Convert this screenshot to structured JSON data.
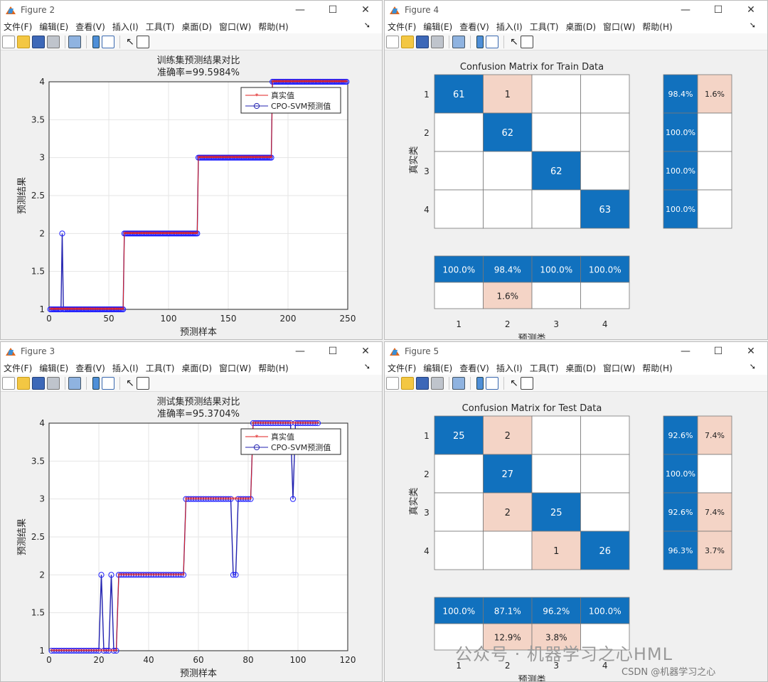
{
  "menu": [
    "文件(F)",
    "编辑(E)",
    "查看(V)",
    "插入(I)",
    "工具(T)",
    "桌面(D)",
    "窗口(W)",
    "帮助(H)"
  ],
  "window_controls": {
    "min": "—",
    "max": "☐",
    "close": "✕"
  },
  "fig2": {
    "window_title": "Figure 2",
    "title1": "训练集预测结果对比",
    "title2": "准确率=99.5984%",
    "xlabel": "预测样本",
    "ylabel": "预测结果",
    "xticks": [
      "0",
      "50",
      "100",
      "150",
      "200",
      "250"
    ],
    "yticks": [
      "1",
      "1.5",
      "2",
      "2.5",
      "3",
      "3.5",
      "4"
    ],
    "legend": [
      "真实值",
      "CPO-SVM预测值"
    ]
  },
  "fig3": {
    "window_title": "Figure 3",
    "title1": "测试集预测结果对比",
    "title2": "准确率=95.3704%",
    "xlabel": "预测样本",
    "ylabel": "预测结果",
    "xticks": [
      "0",
      "20",
      "40",
      "60",
      "80",
      "100",
      "120"
    ],
    "yticks": [
      "1",
      "1.5",
      "2",
      "2.5",
      "3",
      "3.5",
      "4"
    ],
    "legend": [
      "真实值",
      "CPO-SVM预测值"
    ]
  },
  "fig4": {
    "window_title": "Figure 4",
    "title": "Confusion Matrix for Train Data",
    "xlabel": "预测类",
    "ylabel": "真实类",
    "classes": [
      "1",
      "2",
      "3",
      "4"
    ]
  },
  "fig5": {
    "window_title": "Figure 5",
    "title": "Confusion Matrix for Test Data",
    "xlabel": "预测类",
    "ylabel": "真实类",
    "classes": [
      "1",
      "2",
      "3",
      "4"
    ]
  },
  "watermark": {
    "main": "公众号 · 机器学习之心HML",
    "sub": "CSDN @机器学习之心"
  },
  "colors": {
    "diag": "#1171be",
    "offdiag": "#f4d4c6",
    "empty": "#ffffff",
    "true_line": "#e02020",
    "pred_line": "#2222b0",
    "pred_marker": "#1f1fff"
  },
  "chart_data": [
    {
      "type": "line",
      "id": "fig2",
      "title": "训练集预测结果对比 准确率=99.5984%",
      "xlabel": "预测样本",
      "ylabel": "预测结果",
      "xlim": [
        0,
        250
      ],
      "ylim": [
        1,
        4
      ],
      "series": [
        {
          "name": "真实值",
          "segments": [
            [
              1,
              62,
              1
            ],
            [
              63,
              124,
              2
            ],
            [
              125,
              186,
              3
            ],
            [
              187,
              249,
              4
            ]
          ]
        },
        {
          "name": "CPO-SVM预测值",
          "segments": [
            [
              1,
              62,
              1
            ],
            [
              63,
              124,
              2
            ],
            [
              125,
              186,
              3
            ],
            [
              187,
              249,
              4
            ]
          ],
          "outliers": [
            [
              11,
              2
            ]
          ]
        }
      ]
    },
    {
      "type": "line",
      "id": "fig3",
      "title": "测试集预测结果对比 准确率=95.3704%",
      "xlabel": "预测样本",
      "ylabel": "预测结果",
      "xlim": [
        0,
        120
      ],
      "ylim": [
        1,
        4
      ],
      "series": [
        {
          "name": "真实值",
          "segments": [
            [
              1,
              27,
              1
            ],
            [
              28,
              54,
              2
            ],
            [
              55,
              81,
              3
            ],
            [
              82,
              108,
              4
            ]
          ]
        },
        {
          "name": "CPO-SVM预测值",
          "segments": [
            [
              1,
              27,
              1
            ],
            [
              28,
              54,
              2
            ],
            [
              55,
              81,
              3
            ],
            [
              82,
              108,
              4
            ]
          ],
          "outliers": [
            [
              21,
              2
            ],
            [
              25,
              2
            ],
            [
              74,
              2
            ],
            [
              75,
              2
            ],
            [
              98,
              3
            ]
          ]
        }
      ]
    },
    {
      "type": "heatmap",
      "id": "fig4",
      "title": "Confusion Matrix for Train Data",
      "xlabel": "预测类",
      "ylabel": "真实类",
      "matrix": [
        [
          61,
          1,
          0,
          0
        ],
        [
          0,
          62,
          0,
          0
        ],
        [
          0,
          0,
          62,
          0
        ],
        [
          0,
          0,
          0,
          63
        ]
      ],
      "row_summary": [
        [
          "98.4%",
          "1.6%"
        ],
        [
          "100.0%",
          ""
        ],
        [
          "100.0%",
          ""
        ],
        [
          "100.0%",
          ""
        ]
      ],
      "col_summary": [
        [
          "100.0%",
          "98.4%",
          "100.0%",
          "100.0%"
        ],
        [
          "",
          "1.6%",
          "",
          ""
        ]
      ]
    },
    {
      "type": "heatmap",
      "id": "fig5",
      "title": "Confusion Matrix for Test Data",
      "xlabel": "预测类",
      "ylabel": "真实类",
      "matrix": [
        [
          25,
          2,
          0,
          0
        ],
        [
          0,
          27,
          0,
          0
        ],
        [
          0,
          2,
          25,
          0
        ],
        [
          0,
          0,
          1,
          26
        ]
      ],
      "row_summary": [
        [
          "92.6%",
          "7.4%"
        ],
        [
          "100.0%",
          ""
        ],
        [
          "92.6%",
          "7.4%"
        ],
        [
          "96.3%",
          "3.7%"
        ]
      ],
      "col_summary": [
        [
          "100.0%",
          "87.1%",
          "96.2%",
          "100.0%"
        ],
        [
          "",
          "12.9%",
          "3.8%",
          ""
        ]
      ]
    }
  ]
}
